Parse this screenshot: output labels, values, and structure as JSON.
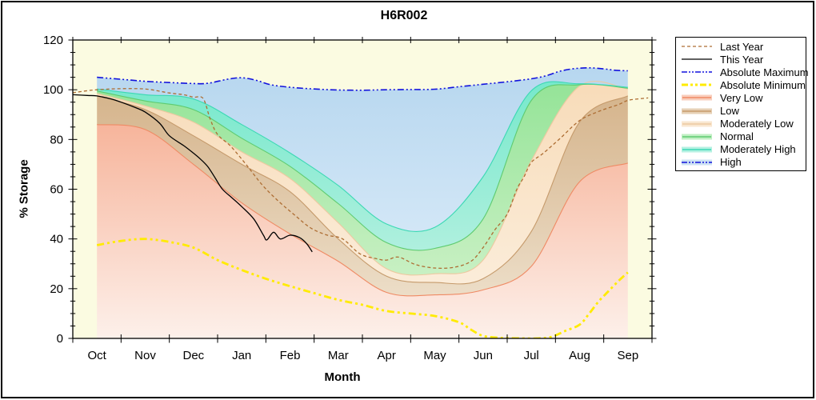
{
  "title": "H6R002",
  "axes": {
    "x_label": "Month",
    "y_label": "% Storage",
    "x_ticks": [
      "Oct",
      "Nov",
      "Dec",
      "Jan",
      "Feb",
      "Mar",
      "Apr",
      "May",
      "Jun",
      "Jul",
      "Aug",
      "Sep"
    ],
    "y_ticks": [
      0,
      20,
      40,
      60,
      80,
      100,
      120
    ],
    "y_minor_step": 5,
    "ylim": [
      0,
      120
    ]
  },
  "colors": {
    "plot_bg": "#fbfbe1",
    "frame": "#000000",
    "abs_max": "#1212dd",
    "abs_min": "#ffeb00",
    "last_year": "#ad6d33",
    "this_year": "#000000",
    "bands": {
      "very_low": {
        "line": "#ef8a64",
        "grad": [
          "#f49d7c",
          "#fdf0ea"
        ]
      },
      "low": {
        "line": "#c59a6b",
        "grad": [
          "#cfa97c",
          "#f1e6d4"
        ]
      },
      "moderately_low": {
        "line": "#edc9a0",
        "grad": [
          "#f7d8b2",
          "#fcf1e2"
        ]
      },
      "normal": {
        "line": "#5ecb70",
        "grad": [
          "#89e18e",
          "#d9f4d1"
        ]
      },
      "moderately_high": {
        "line": "#3bd8b4",
        "grad": [
          "#68e7c7",
          "#cdf3e8"
        ]
      },
      "high": {
        "line": "#1212dd",
        "grad": [
          "#b2d4ee",
          "#e4f1fb"
        ]
      }
    }
  },
  "legend": {
    "items": [
      {
        "label": "Last Year",
        "kind": "line",
        "color": "#ad6d33",
        "dash": "4 3",
        "w": 1.3
      },
      {
        "label": "This Year",
        "kind": "line",
        "color": "#000000",
        "dash": "",
        "w": 1.3
      },
      {
        "label": "Absolute Maximum",
        "kind": "line",
        "color": "#1212dd",
        "dash": "7 2 2 2 2 2",
        "w": 1.6
      },
      {
        "label": "Absolute Minimum",
        "kind": "line",
        "color": "#ffeb00",
        "dash": "8 3 3 3 3 3",
        "w": 3
      },
      {
        "label": "Very Low",
        "kind": "band",
        "color": "#ef8a64",
        "fill": "#f8c5b0"
      },
      {
        "label": "Low",
        "kind": "band",
        "color": "#c59a6b",
        "fill": "#e2c8a8"
      },
      {
        "label": "Moderately Low",
        "kind": "band",
        "color": "#edc9a0",
        "fill": "#f8e3c8"
      },
      {
        "label": "Normal",
        "kind": "band",
        "color": "#5ecb70",
        "fill": "#b5ecb8"
      },
      {
        "label": "Moderately High",
        "kind": "band",
        "color": "#3bd8b4",
        "fill": "#a8efdd"
      },
      {
        "label": "High",
        "kind": "band-line",
        "color": "#1212dd",
        "fill": "#c4ddf1",
        "dash": "7 2 2 2 2 2",
        "w": 1.4
      }
    ]
  },
  "chart_data": {
    "type": "area",
    "title": "H6R002",
    "xlabel": "Month",
    "ylabel": "% Storage",
    "ylim": [
      0,
      120
    ],
    "grid": false,
    "legend_position": "right",
    "months": [
      "Oct",
      "Nov",
      "Dec",
      "Jan",
      "Feb",
      "Mar",
      "Apr",
      "May",
      "Jun",
      "Jul",
      "Aug",
      "Sep"
    ],
    "band_tops_at_mid_month": {
      "very_low": [
        86,
        84,
        70,
        54.5,
        42,
        31,
        18.5,
        17.5,
        19.5,
        29,
        63,
        70.5
      ],
      "low": [
        97.5,
        92,
        81.5,
        70,
        59,
        40,
        25,
        22.5,
        24,
        43,
        87,
        97.5
      ],
      "moderately_low": [
        98.5,
        93.5,
        87,
        75,
        64.3,
        46.5,
        28,
        26,
        31.5,
        71.5,
        101.5,
        100.3
      ],
      "normal": [
        99.5,
        95.5,
        92,
        80.5,
        69.2,
        54.2,
        38.5,
        36.2,
        48,
        95.7,
        102,
        100.6
      ],
      "moderately_high": [
        100.3,
        98,
        96.3,
        86,
        74.6,
        61.5,
        46,
        44.7,
        65,
        99.6,
        102.4,
        101
      ]
    },
    "lines": {
      "absolute_maximum": [
        [
          0.5,
          105
        ],
        [
          1,
          104.2
        ],
        [
          1.5,
          103.4
        ],
        [
          2,
          102.9
        ],
        [
          2.5,
          102.5
        ],
        [
          2.8,
          102.6
        ],
        [
          3.2,
          104.2
        ],
        [
          3.5,
          104.8
        ],
        [
          3.8,
          103.8
        ],
        [
          4.1,
          102
        ],
        [
          4.5,
          101
        ],
        [
          5,
          100.3
        ],
        [
          5.5,
          99.9
        ],
        [
          6,
          99.8
        ],
        [
          6.5,
          100
        ],
        [
          7,
          100.1
        ],
        [
          7.5,
          100.2
        ],
        [
          8,
          101.2
        ],
        [
          8.5,
          102.2
        ],
        [
          9,
          103.2
        ],
        [
          9.5,
          104.4
        ],
        [
          9.8,
          105.6
        ],
        [
          10.1,
          107.5
        ],
        [
          10.4,
          108.5
        ],
        [
          10.7,
          108.8
        ],
        [
          11,
          108.4
        ],
        [
          11.25,
          107.8
        ],
        [
          11.5,
          107.6
        ]
      ],
      "absolute_minimum": [
        [
          0.5,
          37.5
        ],
        [
          1,
          39.2
        ],
        [
          1.5,
          40
        ],
        [
          2,
          38.8
        ],
        [
          2.5,
          36.5
        ],
        [
          3,
          31.5
        ],
        [
          3.5,
          27.5
        ],
        [
          4,
          24
        ],
        [
          4.5,
          21
        ],
        [
          5,
          18.2
        ],
        [
          5.5,
          15.5
        ],
        [
          6,
          13.5
        ],
        [
          6.5,
          11
        ],
        [
          7,
          10
        ],
        [
          7.5,
          9
        ],
        [
          8,
          6.5
        ],
        [
          8.25,
          3.5
        ],
        [
          8.5,
          1
        ],
        [
          8.8,
          0.3
        ],
        [
          9,
          0.1
        ],
        [
          9.3,
          0
        ],
        [
          9.6,
          0
        ],
        [
          9.9,
          0.5
        ],
        [
          10.2,
          3
        ],
        [
          10.5,
          5.5
        ],
        [
          10.7,
          10
        ],
        [
          10.9,
          15
        ],
        [
          11.1,
          19
        ],
        [
          11.3,
          23
        ],
        [
          11.5,
          26.5
        ]
      ],
      "last_year": [
        [
          0,
          98.8
        ],
        [
          0.3,
          99.6
        ],
        [
          0.5,
          100
        ],
        [
          0.95,
          100.4
        ],
        [
          1.5,
          100.3
        ],
        [
          2,
          98.7
        ],
        [
          2.3,
          98
        ],
        [
          2.5,
          97
        ],
        [
          2.7,
          96.5
        ],
        [
          2.85,
          88
        ],
        [
          3,
          82
        ],
        [
          3.27,
          77.3
        ],
        [
          3.6,
          69.7
        ],
        [
          3.93,
          61.6
        ],
        [
          4.26,
          55.2
        ],
        [
          4.59,
          49.7
        ],
        [
          4.93,
          44.4
        ],
        [
          5.26,
          41.6
        ],
        [
          5.59,
          40
        ],
        [
          5.95,
          34
        ],
        [
          6.3,
          32
        ],
        [
          6.5,
          31.5
        ],
        [
          6.75,
          32.7
        ],
        [
          7.1,
          29.7
        ],
        [
          7.5,
          28.3
        ],
        [
          7.9,
          28.6
        ],
        [
          8.25,
          31
        ],
        [
          8.5,
          36.5
        ],
        [
          8.75,
          43.8
        ],
        [
          9,
          50
        ],
        [
          9.2,
          60
        ],
        [
          9.35,
          65
        ],
        [
          9.5,
          70.8
        ],
        [
          9.75,
          74.5
        ],
        [
          10.1,
          80.5
        ],
        [
          10.5,
          87.6
        ],
        [
          10.9,
          91.3
        ],
        [
          11.3,
          94
        ],
        [
          11.5,
          95.7
        ],
        [
          11.75,
          96.4
        ],
        [
          11.92,
          96.7
        ]
      ],
      "this_year": [
        [
          0,
          98
        ],
        [
          0.3,
          97.7
        ],
        [
          0.5,
          97.5
        ],
        [
          0.8,
          96.3
        ],
        [
          1,
          95
        ],
        [
          1.3,
          92.8
        ],
        [
          1.5,
          91
        ],
        [
          1.8,
          86.5
        ],
        [
          2,
          81.5
        ],
        [
          2.3,
          77.5
        ],
        [
          2.5,
          74.5
        ],
        [
          2.65,
          72
        ],
        [
          2.8,
          69
        ],
        [
          2.95,
          64.5
        ],
        [
          3.1,
          60
        ],
        [
          3.3,
          56.5
        ],
        [
          3.5,
          53
        ],
        [
          3.75,
          48
        ],
        [
          3.95,
          41.5
        ],
        [
          4.02,
          39.6
        ],
        [
          4.16,
          42.7
        ],
        [
          4.3,
          40
        ],
        [
          4.5,
          41.5
        ],
        [
          4.7,
          40.5
        ],
        [
          4.85,
          38
        ],
        [
          4.96,
          34.8
        ]
      ]
    }
  }
}
